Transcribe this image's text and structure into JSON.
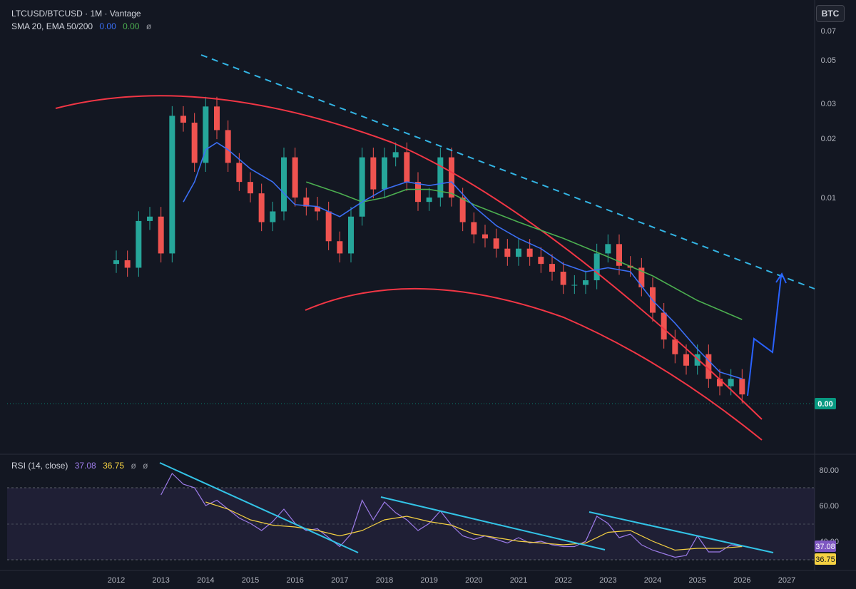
{
  "header": {
    "symbol_line": "LTCUSD/BTCUSD · 1M · Vantage",
    "indicator_name": "SMA 20, EMA 50/200",
    "sma_value": "0.00",
    "ema_value": "0.00",
    "ema_extra": "ø",
    "badge": "BTC"
  },
  "rsi_header": {
    "name": "RSI (14, close)",
    "rsi_value": "37.08",
    "ma_value": "36.75",
    "extra1": "ø",
    "extra2": "ø"
  },
  "colors": {
    "background": "#131722",
    "candle_up": "#26a69a",
    "candle_down": "#ef5350",
    "sma20": "#3b6ff5",
    "ema50": "#4caf50",
    "arc_lines": "#f23645",
    "trend_dashed": "#33b5e5",
    "rsi_line": "#9c7be8",
    "rsi_ma": "#f5d142",
    "rsi_trend": "#33c3e6",
    "price_label": "#089981"
  },
  "chart_data": [
    {
      "type": "candlestick",
      "symbol": "LTCUSD/BTCUSD",
      "interval": "1M",
      "scale": "log",
      "price_axis": {
        "ticks": [
          "0.07",
          "0.05",
          "0.03",
          "0.02",
          "0.01"
        ],
        "current_price_label": "0.00"
      },
      "x_axis": {
        "ticks": [
          "2012",
          "2013",
          "2014",
          "2015",
          "2016",
          "2017",
          "2018",
          "2019",
          "2020",
          "2021",
          "2022",
          "2023",
          "2024",
          "2025",
          "2026",
          "2027"
        ]
      },
      "series": [
        {
          "name": "SMA 20",
          "value": "0.00"
        },
        {
          "name": "EMA 50/200",
          "value": "0.00"
        }
      ],
      "approx_closes": [
        [
          2011.75,
          0.0046
        ],
        [
          2012.0,
          0.0048
        ],
        [
          2012.25,
          0.0044
        ],
        [
          2012.5,
          0.0076
        ],
        [
          2012.75,
          0.008
        ],
        [
          2013.0,
          0.0052
        ],
        [
          2013.25,
          0.026
        ],
        [
          2013.5,
          0.024
        ],
        [
          2013.75,
          0.015
        ],
        [
          2014.0,
          0.029
        ],
        [
          2014.25,
          0.022
        ],
        [
          2014.5,
          0.015
        ],
        [
          2014.75,
          0.012
        ],
        [
          2015.0,
          0.0105
        ],
        [
          2015.25,
          0.0075
        ],
        [
          2015.5,
          0.0085
        ],
        [
          2015.75,
          0.016
        ],
        [
          2016.0,
          0.01
        ],
        [
          2016.25,
          0.009
        ],
        [
          2016.5,
          0.0085
        ],
        [
          2016.75,
          0.006
        ],
        [
          2017.0,
          0.0052
        ],
        [
          2017.25,
          0.008
        ],
        [
          2017.5,
          0.016
        ],
        [
          2017.75,
          0.011
        ],
        [
          2018.0,
          0.016
        ],
        [
          2018.25,
          0.017
        ],
        [
          2018.5,
          0.012
        ],
        [
          2018.75,
          0.0095
        ],
        [
          2019.0,
          0.01
        ],
        [
          2019.25,
          0.016
        ],
        [
          2019.5,
          0.01
        ],
        [
          2019.75,
          0.0075
        ],
        [
          2020.0,
          0.0065
        ],
        [
          2020.25,
          0.0062
        ],
        [
          2020.5,
          0.0055
        ],
        [
          2020.75,
          0.005
        ],
        [
          2021.0,
          0.0055
        ],
        [
          2021.25,
          0.005
        ],
        [
          2021.5,
          0.0046
        ],
        [
          2021.75,
          0.0042
        ],
        [
          2022.0,
          0.0036
        ],
        [
          2022.25,
          0.0036
        ],
        [
          2022.5,
          0.0038
        ],
        [
          2022.75,
          0.0052
        ],
        [
          2023.0,
          0.0058
        ],
        [
          2023.25,
          0.0045
        ],
        [
          2023.5,
          0.0044
        ],
        [
          2023.75,
          0.0035
        ],
        [
          2024.0,
          0.0026
        ],
        [
          2024.25,
          0.0019
        ],
        [
          2024.5,
          0.0016
        ],
        [
          2024.75,
          0.0014
        ],
        [
          2025.0,
          0.0016
        ],
        [
          2025.25,
          0.0012
        ],
        [
          2025.5,
          0.0011
        ],
        [
          2025.75,
          0.0012
        ],
        [
          2026.0,
          0.001
        ]
      ],
      "sma20": [
        [
          2013.5,
          0.0095
        ],
        [
          2013.75,
          0.012
        ],
        [
          2014.0,
          0.0175
        ],
        [
          2014.25,
          0.019
        ],
        [
          2014.5,
          0.0175
        ],
        [
          2015.0,
          0.014
        ],
        [
          2015.5,
          0.012
        ],
        [
          2016.0,
          0.0092
        ],
        [
          2016.5,
          0.009
        ],
        [
          2017.0,
          0.008
        ],
        [
          2017.5,
          0.0095
        ],
        [
          2018.0,
          0.011
        ],
        [
          2018.5,
          0.012
        ],
        [
          2019.0,
          0.0115
        ],
        [
          2019.5,
          0.012
        ],
        [
          2020.0,
          0.009
        ],
        [
          2020.5,
          0.0072
        ],
        [
          2021.0,
          0.0062
        ],
        [
          2021.5,
          0.0055
        ],
        [
          2022.0,
          0.0046
        ],
        [
          2022.5,
          0.0042
        ],
        [
          2023.0,
          0.0044
        ],
        [
          2023.5,
          0.0042
        ],
        [
          2024.0,
          0.003
        ],
        [
          2024.5,
          0.0023
        ],
        [
          2025.0,
          0.0017
        ],
        [
          2025.5,
          0.0013
        ],
        [
          2026.0,
          0.0012
        ]
      ],
      "ema_slow": [
        [
          2016.25,
          0.012
        ],
        [
          2017.0,
          0.0105
        ],
        [
          2017.5,
          0.0095
        ],
        [
          2018.0,
          0.01
        ],
        [
          2018.5,
          0.011
        ],
        [
          2019.0,
          0.011
        ],
        [
          2019.5,
          0.0105
        ],
        [
          2020.0,
          0.0092
        ],
        [
          2021.0,
          0.0075
        ],
        [
          2022.0,
          0.0062
        ],
        [
          2023.0,
          0.005
        ],
        [
          2024.0,
          0.004
        ],
        [
          2025.0,
          0.003
        ],
        [
          2026.0,
          0.0024
        ]
      ],
      "projection": [
        [
          2026.0,
          0.0011
        ],
        [
          2026.25,
          0.0025
        ],
        [
          2026.5,
          0.0018
        ],
        [
          2026.75,
          0.0045
        ]
      ]
    },
    {
      "type": "line",
      "name": "RSI (14, close)",
      "y_axis": {
        "ticks": [
          "80.00",
          "60.00",
          "40.00"
        ],
        "overbought": 70,
        "midline": 50,
        "oversold": 30,
        "ylim": [
          25,
          85
        ]
      },
      "current": {
        "rsi": "37.08",
        "ma": "36.75"
      },
      "rsi": [
        [
          2013.0,
          66
        ],
        [
          2013.25,
          78
        ],
        [
          2013.5,
          72
        ],
        [
          2013.75,
          70
        ],
        [
          2014.0,
          60
        ],
        [
          2014.25,
          63
        ],
        [
          2014.5,
          58
        ],
        [
          2014.75,
          53
        ],
        [
          2015.0,
          50
        ],
        [
          2015.25,
          46
        ],
        [
          2015.5,
          51
        ],
        [
          2015.75,
          58
        ],
        [
          2016.0,
          50
        ],
        [
          2016.25,
          46
        ],
        [
          2016.5,
          47
        ],
        [
          2016.75,
          42
        ],
        [
          2017.0,
          37
        ],
        [
          2017.25,
          44
        ],
        [
          2017.5,
          63
        ],
        [
          2017.75,
          52
        ],
        [
          2018.0,
          62
        ],
        [
          2018.25,
          56
        ],
        [
          2018.5,
          52
        ],
        [
          2018.75,
          46
        ],
        [
          2019.0,
          50
        ],
        [
          2019.25,
          57
        ],
        [
          2019.5,
          49
        ],
        [
          2019.75,
          43
        ],
        [
          2020.0,
          41
        ],
        [
          2020.25,
          43
        ],
        [
          2020.5,
          41
        ],
        [
          2020.75,
          39
        ],
        [
          2021.0,
          42
        ],
        [
          2021.25,
          39
        ],
        [
          2021.5,
          40
        ],
        [
          2021.75,
          38
        ],
        [
          2022.0,
          37
        ],
        [
          2022.25,
          37
        ],
        [
          2022.5,
          40
        ],
        [
          2022.75,
          54
        ],
        [
          2023.0,
          50
        ],
        [
          2023.25,
          42
        ],
        [
          2023.5,
          44
        ],
        [
          2023.75,
          38
        ],
        [
          2024.0,
          35
        ],
        [
          2024.25,
          33
        ],
        [
          2024.5,
          31
        ],
        [
          2024.75,
          32
        ],
        [
          2025.0,
          43
        ],
        [
          2025.25,
          34
        ],
        [
          2025.5,
          34
        ],
        [
          2025.75,
          38
        ],
        [
          2026.0,
          37
        ]
      ],
      "rsi_ma": [
        [
          2014.0,
          62
        ],
        [
          2014.5,
          58
        ],
        [
          2015.0,
          52
        ],
        [
          2015.5,
          49
        ],
        [
          2016.0,
          48
        ],
        [
          2016.5,
          46
        ],
        [
          2017.0,
          43
        ],
        [
          2017.5,
          46
        ],
        [
          2018.0,
          52
        ],
        [
          2018.5,
          54
        ],
        [
          2019.0,
          51
        ],
        [
          2019.5,
          49
        ],
        [
          2020.0,
          44
        ],
        [
          2020.5,
          42
        ],
        [
          2021.0,
          40
        ],
        [
          2021.5,
          39
        ],
        [
          2022.0,
          38
        ],
        [
          2022.5,
          39
        ],
        [
          2023.0,
          45
        ],
        [
          2023.5,
          46
        ],
        [
          2024.0,
          40
        ],
        [
          2024.5,
          35
        ],
        [
          2025.0,
          36
        ],
        [
          2025.5,
          36
        ],
        [
          2026.0,
          37
        ]
      ]
    }
  ]
}
